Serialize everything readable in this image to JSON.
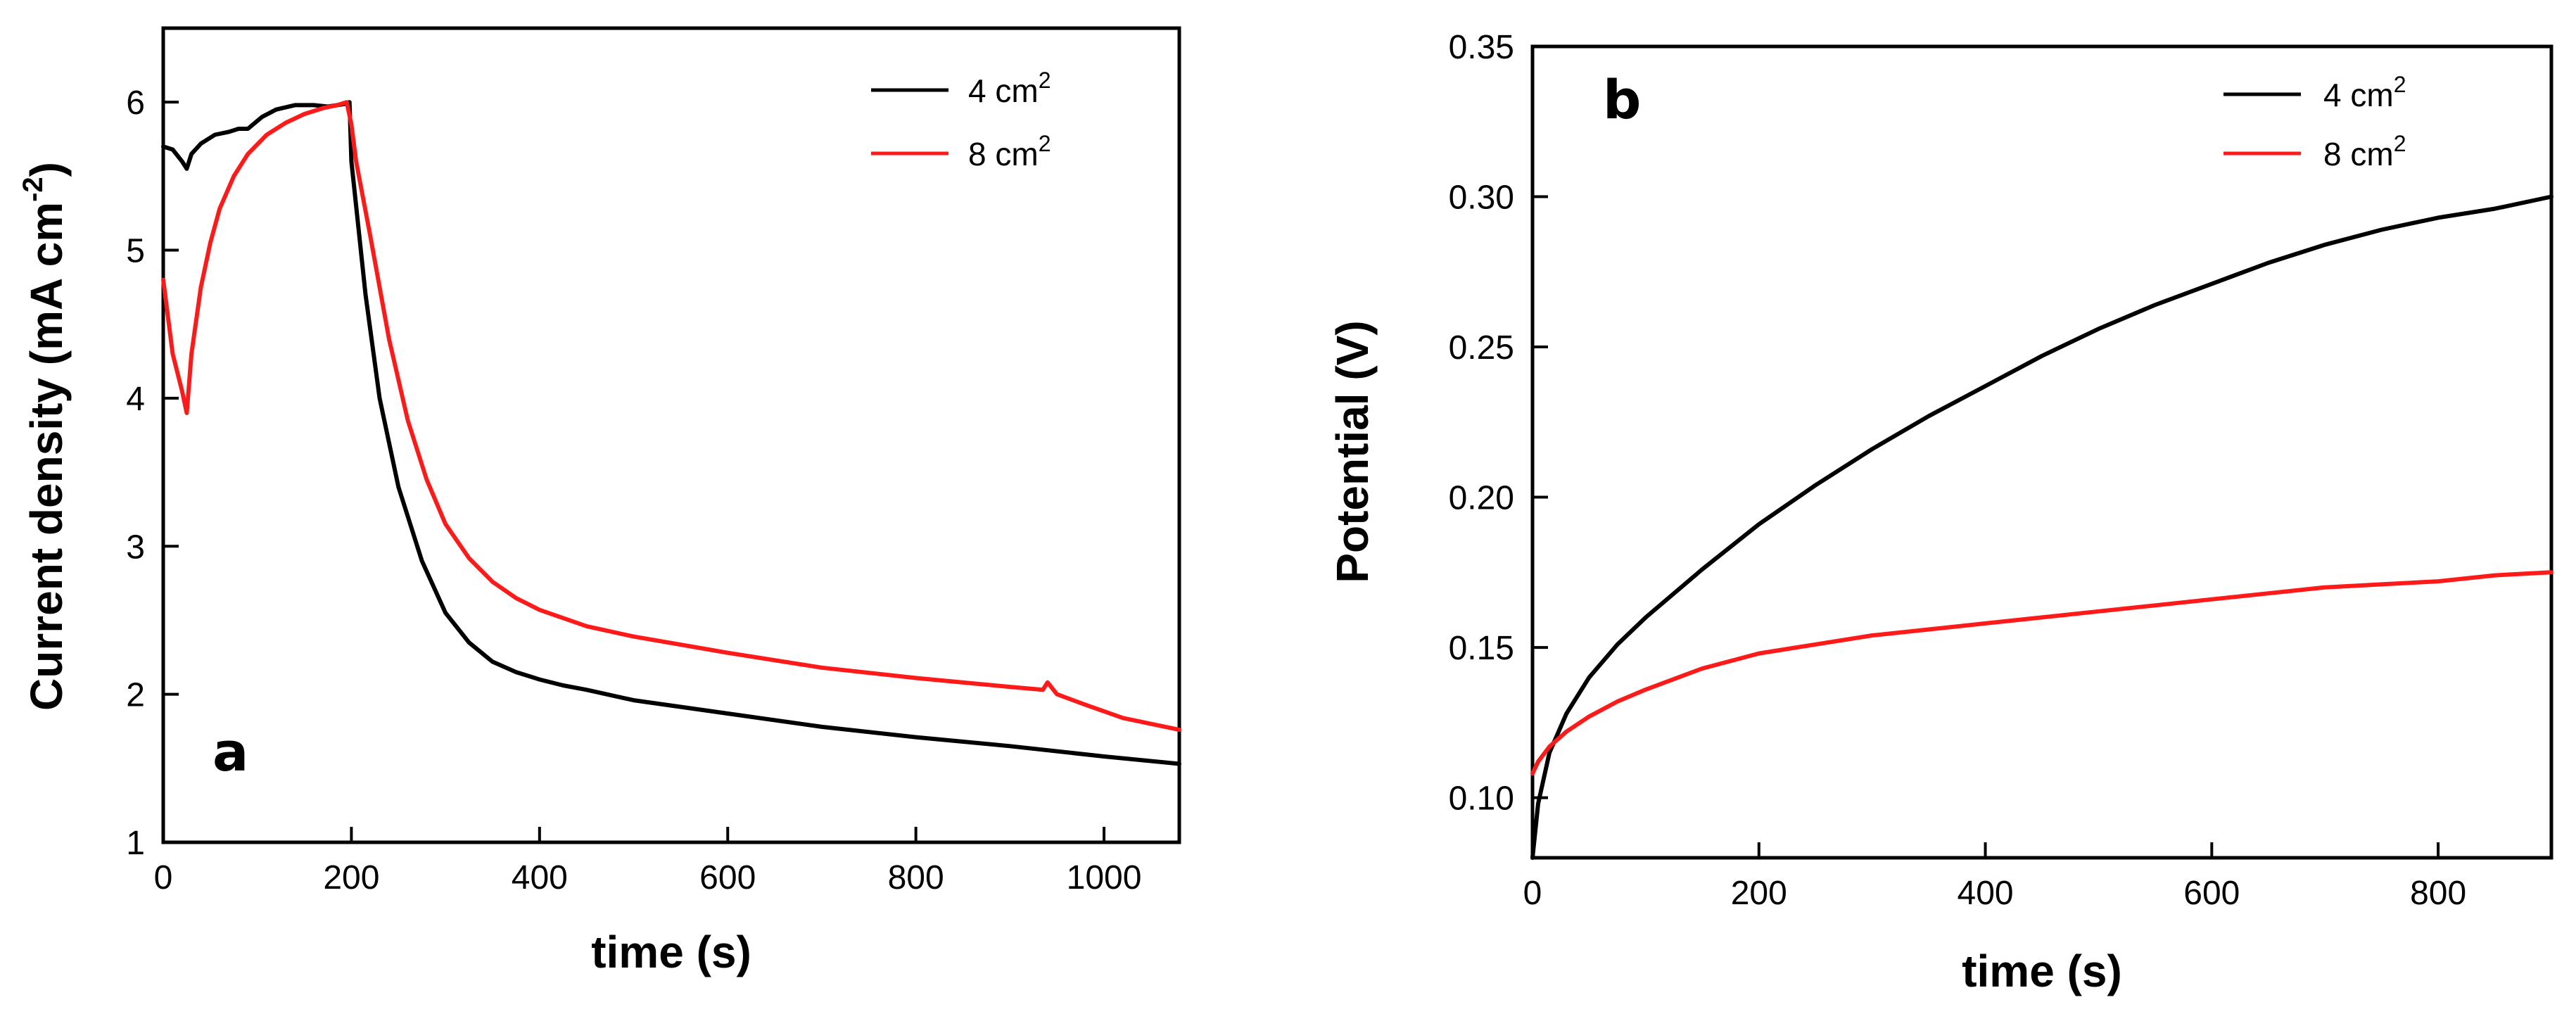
{
  "chart_data": [
    {
      "type": "line",
      "panel_label": "a",
      "xlabel": "time (s)",
      "ylabel": "Current density (mA cm",
      "ylabel_sup": "-2",
      "ylabel_tail": ")",
      "xlim": [
        0,
        1080
      ],
      "ylim": [
        1,
        6.5
      ],
      "xticks": [
        0,
        200,
        400,
        600,
        800,
        1000
      ],
      "yticks": [
        1,
        2,
        3,
        4,
        5,
        6
      ],
      "grid": false,
      "legend_position": "top-right",
      "series": [
        {
          "name": "4 cm",
          "name_sup": "2",
          "color": "#000000",
          "x": [
            0,
            10,
            20,
            25,
            30,
            40,
            55,
            70,
            80,
            90,
            105,
            120,
            140,
            160,
            175,
            185,
            195,
            198,
            200,
            205,
            215,
            230,
            250,
            275,
            300,
            325,
            350,
            375,
            400,
            425,
            450,
            500,
            600,
            700,
            800,
            900,
            1000,
            1080
          ],
          "y": [
            5.7,
            5.68,
            5.6,
            5.55,
            5.65,
            5.72,
            5.78,
            5.8,
            5.82,
            5.82,
            5.9,
            5.95,
            5.98,
            5.98,
            5.97,
            5.98,
            5.99,
            6.0,
            5.6,
            5.3,
            4.7,
            4.0,
            3.4,
            2.9,
            2.55,
            2.35,
            2.22,
            2.15,
            2.1,
            2.06,
            2.03,
            1.96,
            1.87,
            1.78,
            1.71,
            1.65,
            1.58,
            1.53
          ]
        },
        {
          "name": "8 cm",
          "name_sup": "2",
          "color": "#ff1a1a",
          "x": [
            0,
            10,
            20,
            25,
            30,
            40,
            50,
            60,
            75,
            90,
            110,
            130,
            150,
            170,
            185,
            195,
            200,
            205,
            220,
            240,
            260,
            280,
            300,
            325,
            350,
            375,
            400,
            450,
            500,
            600,
            700,
            800,
            900,
            935,
            940,
            950,
            980,
            1020,
            1080
          ],
          "y": [
            4.8,
            4.3,
            4.05,
            3.9,
            4.3,
            4.75,
            5.05,
            5.28,
            5.5,
            5.65,
            5.78,
            5.86,
            5.92,
            5.96,
            5.98,
            6.0,
            5.85,
            5.6,
            5.1,
            4.4,
            3.85,
            3.45,
            3.15,
            2.92,
            2.76,
            2.65,
            2.57,
            2.46,
            2.39,
            2.28,
            2.18,
            2.11,
            2.05,
            2.03,
            2.08,
            2.0,
            1.93,
            1.84,
            1.76
          ]
        }
      ]
    },
    {
      "type": "line",
      "panel_label": "b",
      "xlabel": "time (s)",
      "ylabel": "Potential (V)",
      "xlim": [
        0,
        900
      ],
      "ylim": [
        0.08,
        0.35
      ],
      "xticks": [
        0,
        200,
        400,
        600,
        800
      ],
      "yticks": [
        "0.10",
        "0.15",
        "0.20",
        "0.25",
        "0.30",
        "0.35"
      ],
      "grid": false,
      "legend_position": "top-right",
      "series": [
        {
          "name": "4 cm",
          "name_sup": "2",
          "color": "#000000",
          "x": [
            0,
            5,
            15,
            30,
            50,
            75,
            100,
            150,
            200,
            250,
            300,
            350,
            400,
            450,
            500,
            550,
            600,
            650,
            700,
            750,
            800,
            850,
            900
          ],
          "y": [
            0.08,
            0.098,
            0.115,
            0.128,
            0.14,
            0.151,
            0.16,
            0.176,
            0.191,
            0.204,
            0.216,
            0.227,
            0.237,
            0.247,
            0.256,
            0.264,
            0.271,
            0.278,
            0.284,
            0.289,
            0.293,
            0.296,
            0.3
          ]
        },
        {
          "name": "8 cm",
          "name_sup": "2",
          "color": "#ff1a1a",
          "x": [
            0,
            5,
            15,
            30,
            50,
            75,
            100,
            150,
            200,
            250,
            300,
            350,
            400,
            450,
            500,
            550,
            600,
            650,
            700,
            750,
            800,
            850,
            900
          ],
          "y": [
            0.108,
            0.112,
            0.117,
            0.122,
            0.127,
            0.132,
            0.136,
            0.143,
            0.148,
            0.151,
            0.154,
            0.156,
            0.158,
            0.16,
            0.162,
            0.164,
            0.166,
            0.168,
            0.17,
            0.171,
            0.172,
            0.174,
            0.175
          ]
        }
      ]
    }
  ]
}
